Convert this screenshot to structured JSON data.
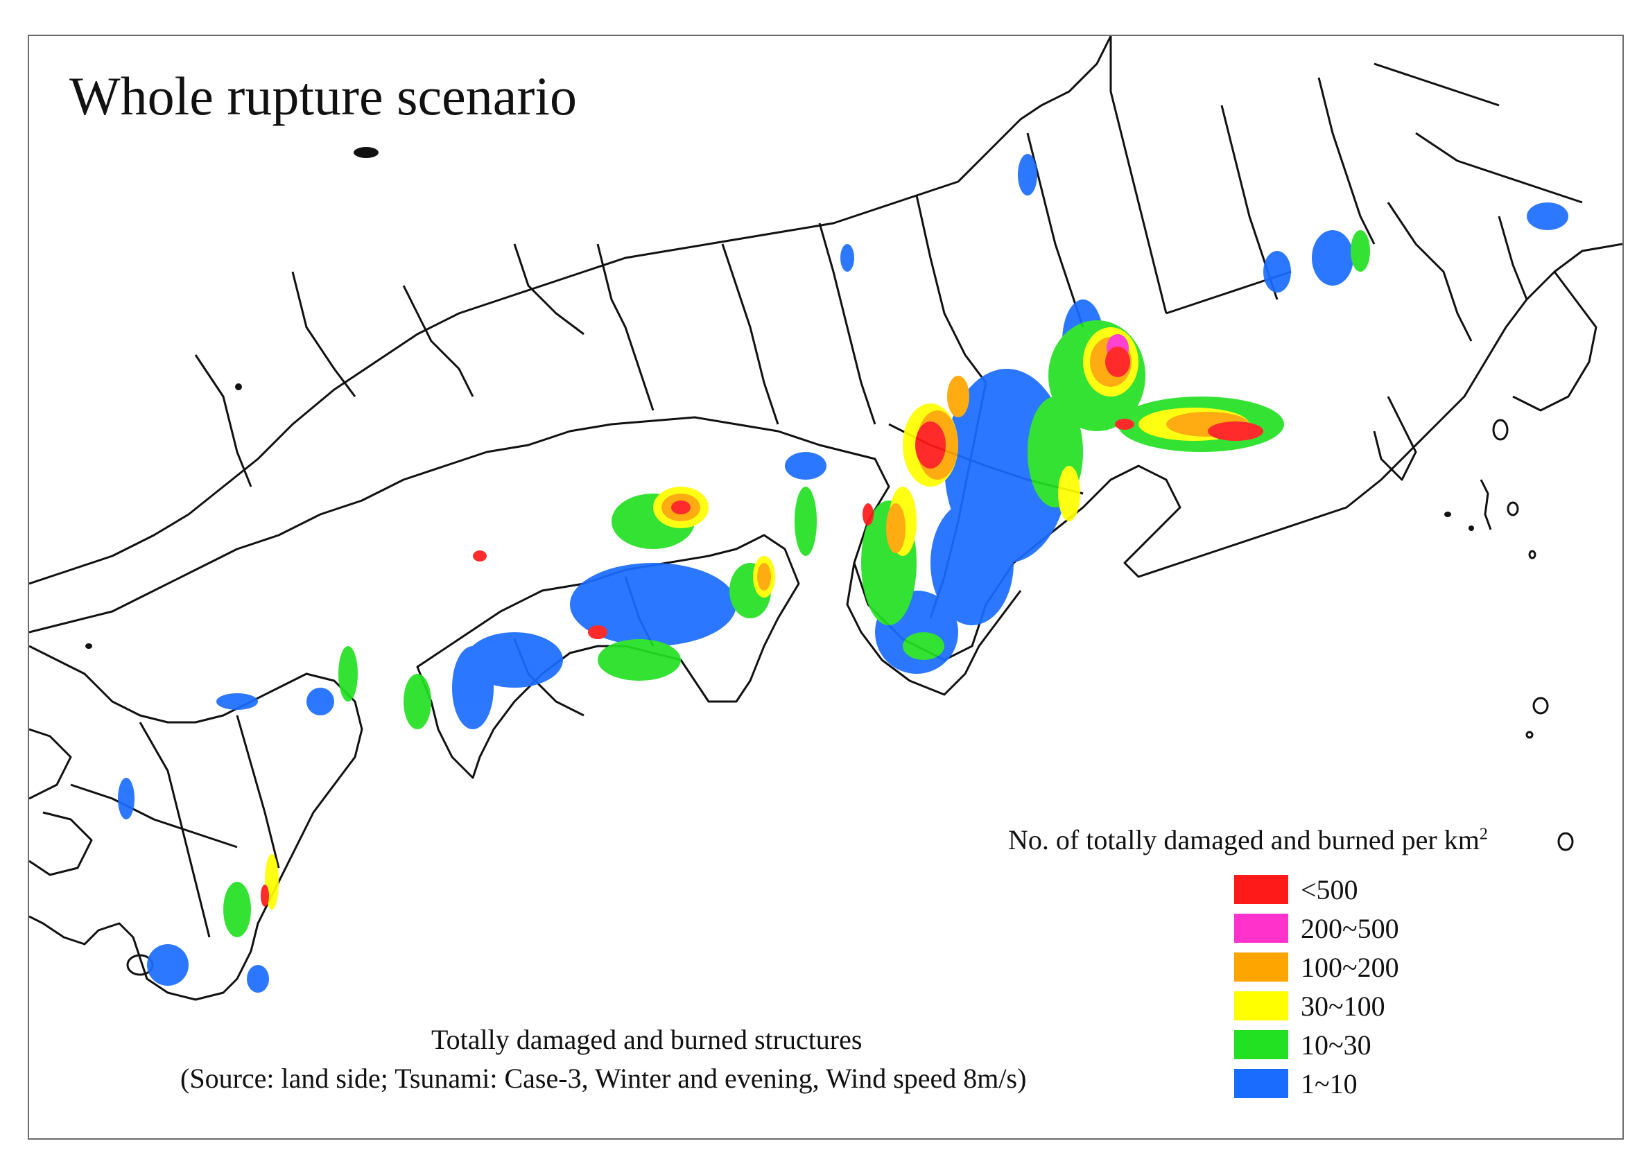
{
  "title": "Whole rupture scenario",
  "legend": {
    "title": "No. of totally damaged and burned per km",
    "title_superscript": "2",
    "items": [
      {
        "label": "<500",
        "color": "#ff1a1a"
      },
      {
        "label": "200~500",
        "color": "#ff33cc"
      },
      {
        "label": "100~200",
        "color": "#ffa500"
      },
      {
        "label": "30~100",
        "color": "#ffff00"
      },
      {
        "label": "10~30",
        "color": "#22e022"
      },
      {
        "label": "1~10",
        "color": "#1a6cff"
      }
    ]
  },
  "caption": {
    "line1": "Totally damaged and burned structures",
    "line2": "(Source: land side; Tsunami: Case-3, Winter and evening, Wind speed 8m/s)"
  },
  "colors": {
    "boundary": "#111111",
    "frame": "#6b6b6b"
  }
}
